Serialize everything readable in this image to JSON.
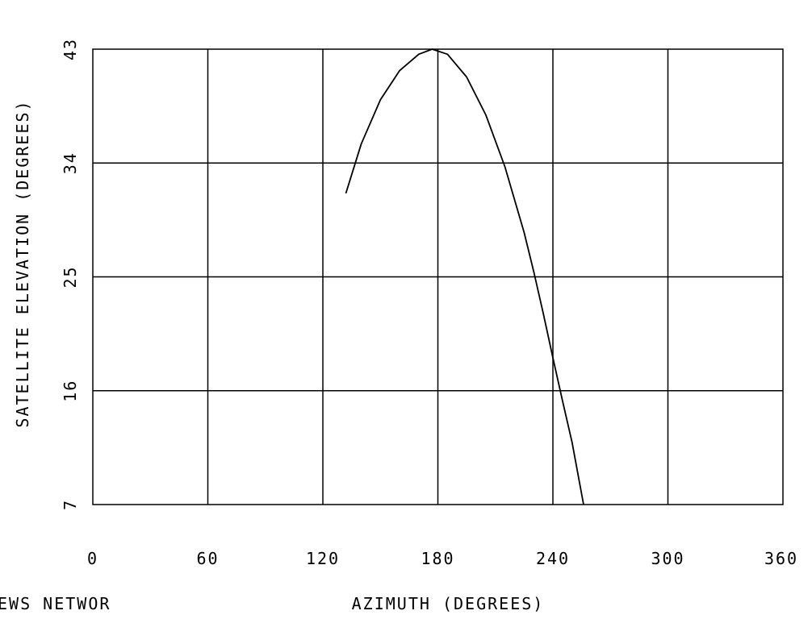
{
  "chart_data": {
    "type": "line",
    "xlabel": "AZIMUTH  (DEGREES)",
    "ylabel": "SATELLITE ELEVATION  (DEGREES)",
    "footer_left_text": "EWS NETWOR",
    "xlim": [
      0,
      360
    ],
    "ylim": [
      7,
      43
    ],
    "x_ticks": [
      "0",
      "60",
      "120",
      "180",
      "240",
      "300",
      "360"
    ],
    "y_ticks": [
      "7",
      "16",
      "25",
      "34",
      "43"
    ],
    "grid": true,
    "series": [
      {
        "x": [
          132,
          140,
          150,
          160,
          170,
          177,
          185,
          195,
          205,
          215,
          225,
          230,
          235,
          240,
          245,
          250,
          256
        ],
        "y": [
          31.6,
          35.5,
          39.0,
          41.3,
          42.6,
          43.0,
          42.6,
          40.8,
          37.8,
          33.7,
          28.5,
          25.4,
          22.1,
          18.6,
          15.2,
          11.9,
          7.0
        ]
      }
    ]
  },
  "colors": {
    "background": "#ffffff",
    "axis": "#000000",
    "grid": "#000000",
    "line": "#000000"
  }
}
